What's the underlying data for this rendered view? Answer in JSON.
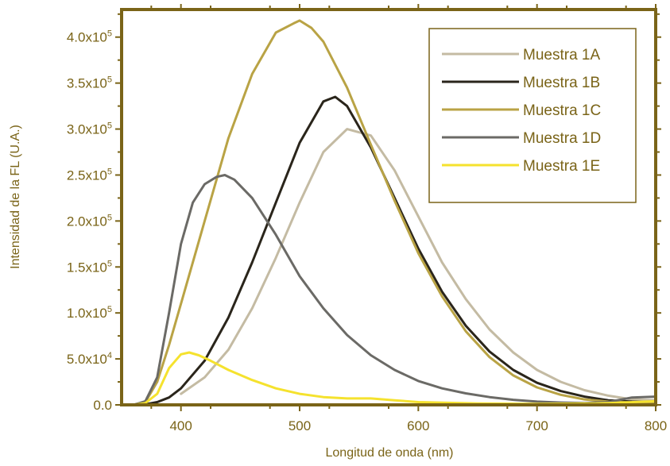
{
  "chart_data": {
    "type": "line",
    "xlabel": "Longitud de onda (nm)",
    "ylabel": "Intensidad de la FL (U.A.)",
    "xlim": [
      350,
      800
    ],
    "ylim": [
      0,
      430000
    ],
    "x_ticks": [
      400,
      500,
      600,
      700,
      800
    ],
    "x_tick_labels": [
      "400",
      "500",
      "600",
      "700",
      "800"
    ],
    "y_ticks": [
      0,
      50000,
      100000,
      150000,
      200000,
      250000,
      300000,
      350000,
      400000
    ],
    "y_tick_labels": [
      {
        "mantissa": "0.0",
        "exp": ""
      },
      {
        "mantissa": "5.0x10",
        "exp": "4"
      },
      {
        "mantissa": "1.0x10",
        "exp": "5"
      },
      {
        "mantissa": "1.5x10",
        "exp": "5"
      },
      {
        "mantissa": "2.0x10",
        "exp": "5"
      },
      {
        "mantissa": "2.5x10",
        "exp": "5"
      },
      {
        "mantissa": "3.0x10",
        "exp": "5"
      },
      {
        "mantissa": "3.5x10",
        "exp": "5"
      },
      {
        "mantissa": "4.0x10",
        "exp": "5"
      }
    ],
    "legend_position": "top-right",
    "grid": false,
    "axis_color": "#7a6418",
    "series": [
      {
        "name": "Muestra 1A",
        "color": "#c4bba3",
        "x": [
          400,
          420,
          440,
          460,
          480,
          500,
          520,
          540,
          560,
          580,
          600,
          620,
          640,
          660,
          680,
          700,
          720,
          740,
          760,
          780,
          800
        ],
        "y": [
          12000,
          30000,
          60000,
          105000,
          160000,
          220000,
          275000,
          300000,
          293000,
          255000,
          205000,
          155000,
          115000,
          82000,
          57000,
          38000,
          25000,
          16000,
          10000,
          6000,
          5000
        ]
      },
      {
        "name": "Muestra 1B",
        "color": "#2a251b",
        "x": [
          350,
          360,
          370,
          380,
          390,
          400,
          420,
          440,
          460,
          480,
          500,
          520,
          530,
          540,
          560,
          580,
          600,
          620,
          640,
          660,
          680,
          700,
          720,
          740,
          760,
          780,
          800
        ],
        "y": [
          0,
          0,
          500,
          3000,
          8000,
          18000,
          48000,
          95000,
          155000,
          220000,
          285000,
          330000,
          335000,
          325000,
          280000,
          225000,
          170000,
          123000,
          86000,
          58000,
          38000,
          24000,
          15000,
          9000,
          5000,
          3500,
          3000
        ]
      },
      {
        "name": "Muestra 1C",
        "color": "#b9a345",
        "x": [
          350,
          360,
          370,
          380,
          390,
          400,
          420,
          440,
          460,
          480,
          495,
          500,
          510,
          520,
          540,
          560,
          580,
          600,
          620,
          640,
          660,
          680,
          700,
          720,
          740,
          760,
          780,
          800
        ],
        "y": [
          0,
          0,
          3000,
          25000,
          65000,
          110000,
          200000,
          290000,
          360000,
          405000,
          415000,
          418000,
          410000,
          395000,
          345000,
          283000,
          222000,
          165000,
          118000,
          80000,
          52000,
          32000,
          19000,
          11000,
          6000,
          3500,
          2500,
          2000
        ]
      },
      {
        "name": "Muestra 1D",
        "color": "#6b6a66",
        "x": [
          350,
          360,
          370,
          380,
          390,
          400,
          410,
          420,
          430,
          437,
          445,
          460,
          480,
          500,
          520,
          540,
          560,
          580,
          600,
          620,
          640,
          660,
          680,
          700,
          720,
          740,
          760,
          780,
          800
        ],
        "y": [
          0,
          0,
          4000,
          30000,
          100000,
          175000,
          220000,
          240000,
          248000,
          250000,
          245000,
          225000,
          185000,
          140000,
          105000,
          76000,
          54000,
          38000,
          26000,
          18000,
          12500,
          8500,
          5500,
          3500,
          2500,
          2000,
          3000,
          8000,
          9000
        ]
      },
      {
        "name": "Muestra 1E",
        "color": "#f5e22e",
        "x": [
          350,
          360,
          370,
          380,
          390,
          400,
          407,
          415,
          425,
          440,
          460,
          480,
          500,
          520,
          540,
          560,
          580,
          600,
          650,
          700,
          750,
          800
        ],
        "y": [
          0,
          0,
          2000,
          12000,
          40000,
          55000,
          57000,
          54000,
          48000,
          38000,
          27000,
          18000,
          12000,
          8500,
          7000,
          7000,
          5000,
          3000,
          1500,
          1000,
          1500,
          4000
        ]
      }
    ]
  }
}
